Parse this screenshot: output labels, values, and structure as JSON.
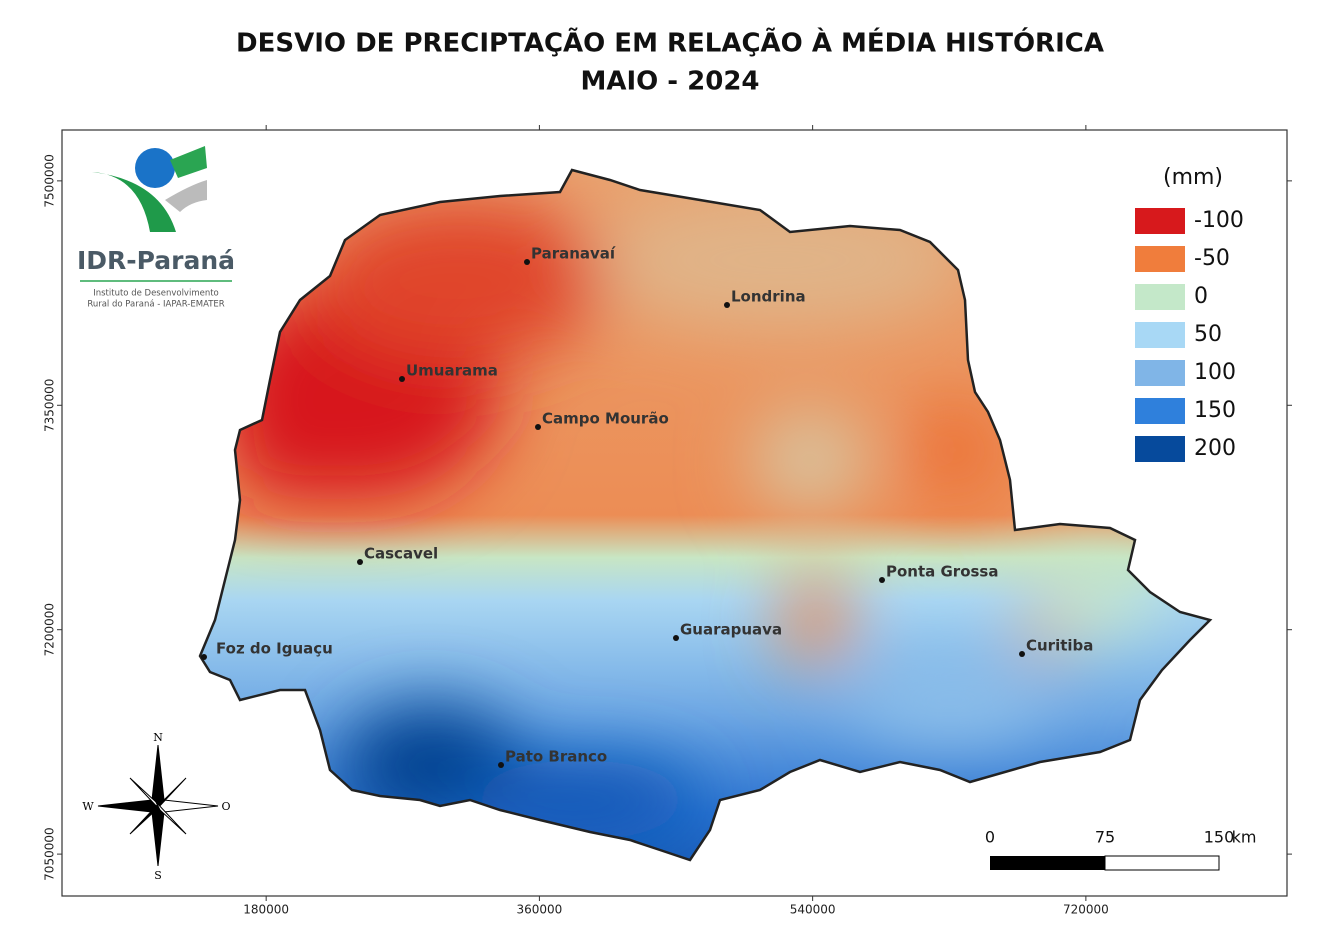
{
  "title": [
    "DESVIO DE PRECIPTAÇÃO EM RELAÇÃO À MÉDIA HISTÓRICA",
    "MAIO - 2024"
  ],
  "logo": {
    "name": "IDR-Paraná",
    "subtitle": [
      "Instituto de Desenvolvimento",
      "Rural do Paraná - IAPAR-EMATER"
    ]
  },
  "axes": {
    "xlim": [
      45500,
      852500
    ],
    "ylim": [
      7022000,
      7534000
    ],
    "xticks": [
      180000,
      360000,
      540000,
      720000
    ],
    "yticks": [
      7500000,
      7350000,
      7200000,
      7050000
    ]
  },
  "legend": {
    "unit": "(mm)",
    "items": [
      {
        "value": -100,
        "color": "#d7191c"
      },
      {
        "value": -50,
        "color": "#f07d3c"
      },
      {
        "value": 0,
        "color": "#c4e8c9"
      },
      {
        "value": 50,
        "color": "#a8d8f5"
      },
      {
        "value": 100,
        "color": "#80b5e7"
      },
      {
        "value": 150,
        "color": "#2f80dc"
      },
      {
        "value": 200,
        "color": "#064a9c"
      }
    ]
  },
  "cities": [
    "Paranavaí",
    "Londrina",
    "Umuarama",
    "Campo Mourão",
    "Cascavel",
    "Ponta Grossa",
    "Guarapuava",
    "Foz do Iguaçu",
    "Curitiba",
    "Pato Branco"
  ],
  "compass": [
    "N",
    "W",
    "O",
    "S"
  ],
  "scale_bar": {
    "ticks": [
      0,
      75,
      150
    ],
    "unit": "km"
  }
}
